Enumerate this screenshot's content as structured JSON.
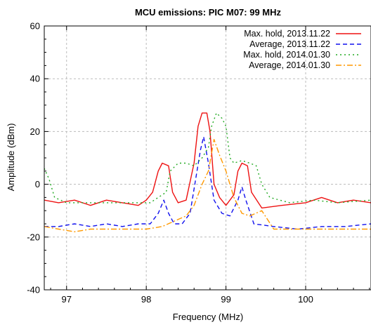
{
  "chart_data": {
    "type": "line",
    "title": "MCU emissions: PIC M07: 99 MHz",
    "xlabel": "Frequency (MHz)",
    "ylabel": "Amplitude (dBm)",
    "xlim": [
      96.72,
      100.82
    ],
    "ylim": [
      -40,
      60
    ],
    "x_ticks": [
      97,
      98,
      99,
      100
    ],
    "x_tick_labels": [
      "97",
      "98",
      "99",
      "100"
    ],
    "y_ticks": [
      -40,
      -20,
      0,
      20,
      40,
      60
    ],
    "y_tick_labels": [
      "-40",
      "-20",
      "0",
      "20",
      "40",
      "60"
    ],
    "grid": true,
    "legend_position": "top-right",
    "series": [
      {
        "name": "Max. hold, 2013.11.22",
        "color": "#ee1111",
        "dash": "solid",
        "points": [
          [
            96.72,
            -6
          ],
          [
            96.9,
            -7
          ],
          [
            97.1,
            -6
          ],
          [
            97.3,
            -8
          ],
          [
            97.5,
            -6
          ],
          [
            97.7,
            -7
          ],
          [
            97.9,
            -8
          ],
          [
            98.0,
            -6
          ],
          [
            98.08,
            -3
          ],
          [
            98.15,
            5
          ],
          [
            98.2,
            8
          ],
          [
            98.28,
            7
          ],
          [
            98.33,
            -3
          ],
          [
            98.4,
            -7
          ],
          [
            98.5,
            -6
          ],
          [
            98.6,
            8
          ],
          [
            98.65,
            22
          ],
          [
            98.7,
            27
          ],
          [
            98.76,
            27
          ],
          [
            98.8,
            20
          ],
          [
            98.85,
            0
          ],
          [
            98.92,
            -5
          ],
          [
            99.0,
            -8
          ],
          [
            99.1,
            -4
          ],
          [
            99.15,
            5
          ],
          [
            99.2,
            8
          ],
          [
            99.27,
            7
          ],
          [
            99.32,
            -3
          ],
          [
            99.45,
            -9
          ],
          [
            99.7,
            -8
          ],
          [
            100.0,
            -7
          ],
          [
            100.2,
            -5
          ],
          [
            100.4,
            -7
          ],
          [
            100.6,
            -6
          ],
          [
            100.82,
            -7
          ]
        ]
      },
      {
        "name": "Average, 2013.11.22",
        "color": "#1111ee",
        "dash": "6,4",
        "points": [
          [
            96.72,
            -16
          ],
          [
            96.9,
            -16
          ],
          [
            97.1,
            -15
          ],
          [
            97.3,
            -16
          ],
          [
            97.5,
            -15
          ],
          [
            97.7,
            -16
          ],
          [
            97.9,
            -15
          ],
          [
            98.05,
            -15
          ],
          [
            98.15,
            -11
          ],
          [
            98.22,
            -6
          ],
          [
            98.28,
            -11
          ],
          [
            98.35,
            -15
          ],
          [
            98.45,
            -15
          ],
          [
            98.55,
            -11
          ],
          [
            98.62,
            2
          ],
          [
            98.68,
            13
          ],
          [
            98.72,
            18
          ],
          [
            98.78,
            8
          ],
          [
            98.85,
            -6
          ],
          [
            98.95,
            -11
          ],
          [
            99.05,
            -12
          ],
          [
            99.15,
            -6
          ],
          [
            99.2,
            -1
          ],
          [
            99.25,
            -6
          ],
          [
            99.35,
            -15
          ],
          [
            99.6,
            -16
          ],
          [
            99.9,
            -17
          ],
          [
            100.2,
            -16
          ],
          [
            100.5,
            -16
          ],
          [
            100.82,
            -15
          ]
        ]
      },
      {
        "name": "Max. hold, 2014.01.30",
        "color": "#22aa22",
        "dash": "2,4",
        "points": [
          [
            96.72,
            6
          ],
          [
            96.78,
            2
          ],
          [
            96.85,
            -5
          ],
          [
            97.0,
            -7
          ],
          [
            97.3,
            -7
          ],
          [
            97.6,
            -7
          ],
          [
            97.9,
            -7
          ],
          [
            98.05,
            -7
          ],
          [
            98.15,
            -5
          ],
          [
            98.25,
            -3
          ],
          [
            98.3,
            5
          ],
          [
            98.4,
            8
          ],
          [
            98.5,
            8
          ],
          [
            98.6,
            7
          ],
          [
            98.7,
            10
          ],
          [
            98.78,
            14
          ],
          [
            98.82,
            22
          ],
          [
            98.88,
            27
          ],
          [
            98.95,
            25
          ],
          [
            99.0,
            22
          ],
          [
            99.05,
            10
          ],
          [
            99.1,
            8
          ],
          [
            99.2,
            9
          ],
          [
            99.3,
            8
          ],
          [
            99.38,
            7
          ],
          [
            99.45,
            0
          ],
          [
            99.55,
            -5
          ],
          [
            99.8,
            -7
          ],
          [
            100.1,
            -6
          ],
          [
            100.4,
            -7
          ],
          [
            100.82,
            -6
          ]
        ]
      },
      {
        "name": "Average, 2014.01.30",
        "color": "#ff9900",
        "dash": "8,3,2,3",
        "points": [
          [
            96.72,
            -16
          ],
          [
            96.9,
            -17
          ],
          [
            97.1,
            -18
          ],
          [
            97.3,
            -17
          ],
          [
            97.5,
            -17
          ],
          [
            97.8,
            -17
          ],
          [
            98.0,
            -17
          ],
          [
            98.2,
            -16
          ],
          [
            98.35,
            -14
          ],
          [
            98.5,
            -12
          ],
          [
            98.6,
            -8
          ],
          [
            98.7,
            0
          ],
          [
            98.78,
            5
          ],
          [
            98.85,
            17
          ],
          [
            98.92,
            11
          ],
          [
            99.0,
            5
          ],
          [
            99.1,
            -5
          ],
          [
            99.2,
            -11
          ],
          [
            99.3,
            -12
          ],
          [
            99.45,
            -10
          ],
          [
            99.6,
            -17
          ],
          [
            99.9,
            -17
          ],
          [
            100.2,
            -17
          ],
          [
            100.5,
            -17
          ],
          [
            100.82,
            -17
          ]
        ]
      }
    ]
  }
}
